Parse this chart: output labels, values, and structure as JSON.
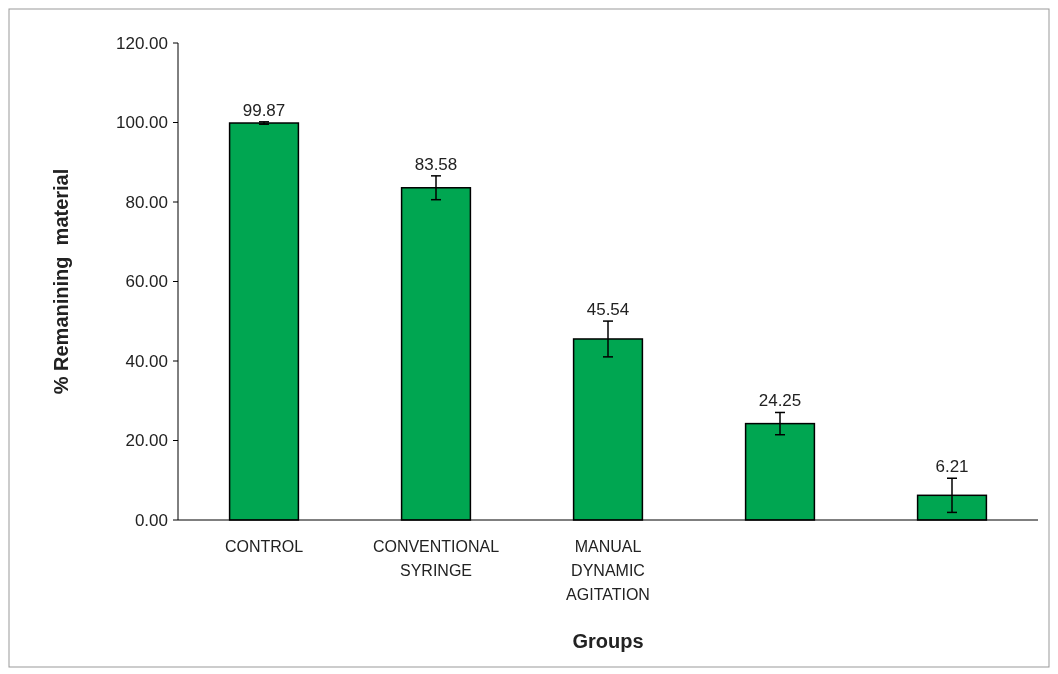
{
  "chart_data": {
    "type": "bar",
    "xlabel": "Groups",
    "ylabel": "% Remanining  material",
    "categories": [
      "CONTROL",
      "CONVENTIONAL SYRINGE",
      "MANUAL DYNAMIC AGITATION",
      null,
      null
    ],
    "values": [
      99.87,
      83.58,
      45.54,
      24.25,
      6.21
    ],
    "errors": [
      0.3,
      3,
      4.5,
      2.8,
      4.3
    ],
    "color": "#00a651",
    "data_labels": true,
    "ylim": [
      0,
      120
    ],
    "yticks": [
      {
        "value": 0,
        "label": "0.00"
      },
      {
        "value": 20,
        "label": "20.00"
      },
      {
        "value": 40,
        "label": "40.00"
      },
      {
        "value": 60,
        "label": "60.00"
      },
      {
        "value": 80,
        "label": "80.00"
      },
      {
        "value": 100,
        "label": "100.00"
      },
      {
        "value": 120,
        "label": "120.00"
      }
    ],
    "grid": false
  }
}
